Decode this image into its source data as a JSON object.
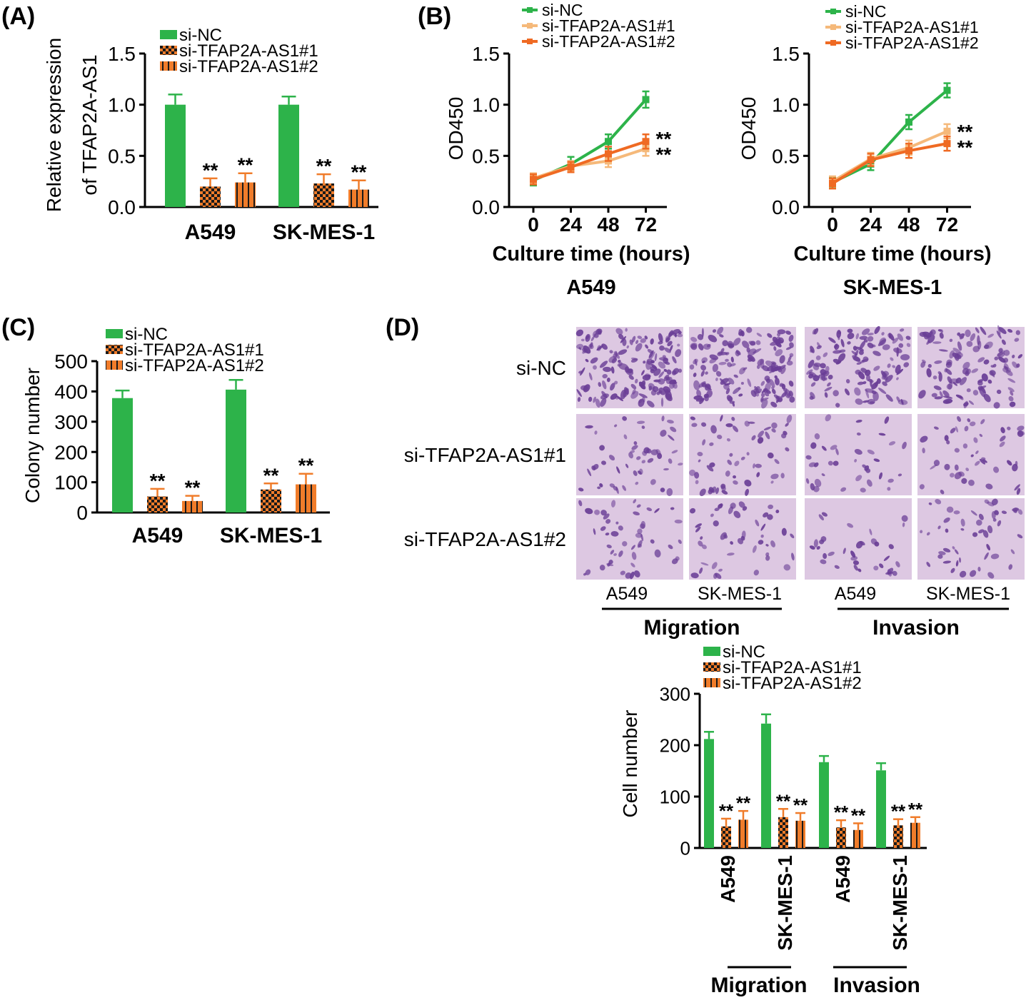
{
  "colors": {
    "green": "#2db34a",
    "orange": "#f07c2a",
    "light_orange": "#f5b97a",
    "dark_orange": "#ef6a23",
    "stain_bg": "#ddc8e2",
    "stain_cell": "#6a3e96",
    "axis": "#000000"
  },
  "panel_labels": {
    "a": "(A)",
    "b": "(B)",
    "c": "(C)",
    "d": "(D)"
  },
  "significance": "**",
  "chart_data": [
    {
      "id": "A",
      "type": "bar",
      "title": "",
      "ylabel": [
        "Relative expression",
        "of TFAP2A-AS1"
      ],
      "xlabel": "",
      "categories": [
        "A549",
        "SK-MES-1"
      ],
      "ylim": [
        0,
        1.5
      ],
      "yticks": [
        "0.0",
        "0.5",
        "1.0",
        "1.5"
      ],
      "ytick_values": [
        0,
        0.5,
        1.0,
        1.5
      ],
      "series": [
        {
          "name": "si-NC",
          "pattern": "solid",
          "values": [
            1.0,
            1.0
          ],
          "errors": [
            0.1,
            0.08
          ],
          "sig": [
            "",
            ""
          ]
        },
        {
          "name": "si-TFAP2A-AS1#1",
          "pattern": "checker",
          "values": [
            0.2,
            0.23
          ],
          "errors": [
            0.08,
            0.09
          ],
          "sig": [
            "**",
            "**"
          ]
        },
        {
          "name": "si-TFAP2A-AS1#2",
          "pattern": "vstripe",
          "values": [
            0.24,
            0.17
          ],
          "errors": [
            0.09,
            0.09
          ],
          "sig": [
            "**",
            "**"
          ]
        }
      ]
    },
    {
      "id": "B1",
      "type": "line",
      "title": "A549",
      "ylabel": "OD450",
      "xlabel": "Culture time (hours)",
      "x": [
        0,
        24,
        48,
        72
      ],
      "xticks": [
        "0",
        "24",
        "48",
        "72"
      ],
      "ylim": [
        0,
        1.5
      ],
      "yticks": [
        "0.0",
        "0.5",
        "1.0",
        "1.5"
      ],
      "ytick_values": [
        0,
        0.5,
        1.0,
        1.5
      ],
      "series": [
        {
          "name": "si-NC",
          "values": [
            0.26,
            0.42,
            0.64,
            1.05
          ],
          "errors": [
            0.05,
            0.07,
            0.07,
            0.08
          ],
          "sig": ""
        },
        {
          "name": "si-TFAP2A-AS1#1",
          "values": [
            0.28,
            0.4,
            0.45,
            0.57
          ],
          "errors": [
            0.05,
            0.05,
            0.06,
            0.07
          ],
          "sig": "**"
        },
        {
          "name": "si-TFAP2A-AS1#2",
          "values": [
            0.27,
            0.39,
            0.52,
            0.64
          ],
          "errors": [
            0.05,
            0.05,
            0.07,
            0.07
          ],
          "sig": "**"
        }
      ]
    },
    {
      "id": "B2",
      "type": "line",
      "title": "SK-MES-1",
      "ylabel": "OD450",
      "xlabel": "Culture time (hours)",
      "x": [
        0,
        24,
        48,
        72
      ],
      "xticks": [
        "0",
        "24",
        "48",
        "72"
      ],
      "ylim": [
        0,
        1.5
      ],
      "yticks": [
        "0.0",
        "0.5",
        "1.0",
        "1.5"
      ],
      "ytick_values": [
        0,
        0.5,
        1.0,
        1.5
      ],
      "series": [
        {
          "name": "si-NC",
          "values": [
            0.24,
            0.42,
            0.83,
            1.14
          ],
          "errors": [
            0.05,
            0.06,
            0.07,
            0.07
          ],
          "sig": ""
        },
        {
          "name": "si-TFAP2A-AS1#1",
          "values": [
            0.25,
            0.47,
            0.58,
            0.74
          ],
          "errors": [
            0.05,
            0.06,
            0.07,
            0.07
          ],
          "sig": "**"
        },
        {
          "name": "si-TFAP2A-AS1#2",
          "values": [
            0.23,
            0.46,
            0.55,
            0.62
          ],
          "errors": [
            0.05,
            0.06,
            0.07,
            0.07
          ],
          "sig": "**"
        }
      ]
    },
    {
      "id": "C",
      "type": "bar",
      "title": "",
      "ylabel": [
        "Colony number"
      ],
      "xlabel": "",
      "categories": [
        "A549",
        "SK-MES-1"
      ],
      "ylim": [
        0,
        500
      ],
      "yticks": [
        "0",
        "100",
        "200",
        "300",
        "400",
        "500"
      ],
      "ytick_values": [
        0,
        100,
        200,
        300,
        400,
        500
      ],
      "series": [
        {
          "name": "si-NC",
          "pattern": "solid",
          "values": [
            378,
            406
          ],
          "errors": [
            25,
            32
          ],
          "sig": [
            "",
            ""
          ]
        },
        {
          "name": "si-TFAP2A-AS1#1",
          "pattern": "checker",
          "values": [
            53,
            76
          ],
          "errors": [
            25,
            20
          ],
          "sig": [
            "**",
            "**"
          ]
        },
        {
          "name": "si-TFAP2A-AS1#2",
          "pattern": "vstripe",
          "values": [
            38,
            93
          ],
          "errors": [
            17,
            35
          ],
          "sig": [
            "**",
            "**"
          ]
        }
      ]
    },
    {
      "id": "D",
      "type": "bar",
      "title": "",
      "ylabel": [
        "Cell number"
      ],
      "xlabel": "",
      "categories": [
        "A549",
        "SK-MES-1",
        "A549",
        "SK-MES-1"
      ],
      "groups": [
        "Migration",
        "Invasion"
      ],
      "ylim": [
        0,
        300
      ],
      "yticks": [
        "0",
        "100",
        "200",
        "300"
      ],
      "ytick_values": [
        0,
        100,
        200,
        300
      ],
      "series": [
        {
          "name": "si-NC",
          "pattern": "solid",
          "values": [
            212,
            242,
            167,
            151
          ],
          "errors": [
            14,
            18,
            12,
            14
          ],
          "sig": [
            "",
            "",
            "",
            ""
          ]
        },
        {
          "name": "si-TFAP2A-AS1#1",
          "pattern": "checker",
          "values": [
            42,
            60,
            40,
            44
          ],
          "errors": [
            15,
            16,
            14,
            12
          ],
          "sig": [
            "**",
            "**",
            "**",
            "**"
          ]
        },
        {
          "name": "si-TFAP2A-AS1#2",
          "pattern": "vstripe",
          "values": [
            55,
            53,
            35,
            49
          ],
          "errors": [
            17,
            15,
            13,
            11
          ],
          "sig": [
            "**",
            "**",
            "**",
            "**"
          ]
        }
      ]
    }
  ],
  "micrograph_grid": {
    "rows": [
      "si-NC",
      "si-TFAP2A-AS1#1",
      "si-TFAP2A-AS1#2"
    ],
    "columns": [
      "A549",
      "SK-MES-1",
      "A549",
      "SK-MES-1"
    ],
    "groups": [
      "Migration",
      "Invasion"
    ],
    "density": [
      [
        0.95,
        0.95,
        0.75,
        0.7
      ],
      [
        0.3,
        0.35,
        0.22,
        0.28
      ],
      [
        0.3,
        0.28,
        0.2,
        0.3
      ]
    ]
  }
}
